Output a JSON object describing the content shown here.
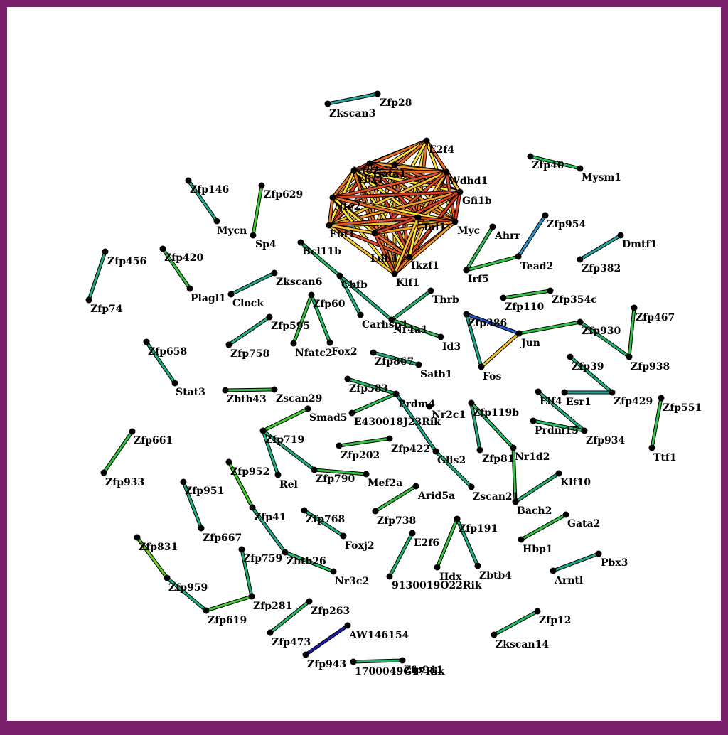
{
  "diagram": {
    "type": "gene-network",
    "colors": {
      "frame": "#7b1f6b",
      "background": "#ffffff",
      "node": "#000000"
    },
    "nodes": [
      {
        "id": "Zkscan3",
        "label": "Zkscan3"
      },
      {
        "id": "Zfp28",
        "label": "Zfp28"
      },
      {
        "id": "E2f4",
        "label": "E2f4"
      },
      {
        "id": "Gata1",
        "label": "Gata1"
      },
      {
        "id": "Nfe2",
        "label": "Nfe2"
      },
      {
        "id": "Ybx1",
        "label": "Ybx1"
      },
      {
        "id": "Wdhd1",
        "label": "Wdhd1"
      },
      {
        "id": "Gfi1b",
        "label": "Gfi1b"
      },
      {
        "id": "Nfe2b",
        "label": "Nfe2"
      },
      {
        "id": "Ebf1",
        "label": "Ebf1"
      },
      {
        "id": "Myc",
        "label": "Myc"
      },
      {
        "id": "Ikzf1",
        "label": "Ikzf1"
      },
      {
        "id": "Klf1",
        "label": "Klf1"
      },
      {
        "id": "Tal1",
        "label": "Tal1"
      },
      {
        "id": "Ldb1",
        "label": "Ldb1"
      },
      {
        "id": "Zfp40",
        "label": "Zfp40"
      },
      {
        "id": "Mysm1",
        "label": "Mysm1"
      },
      {
        "id": "Zfp146",
        "label": "Zfp146"
      },
      {
        "id": "Mycn",
        "label": "Mycn"
      },
      {
        "id": "Zfp629",
        "label": "Zfp629"
      },
      {
        "id": "Sp4",
        "label": "Sp4"
      },
      {
        "id": "Zfp954",
        "label": "Zfp954"
      },
      {
        "id": "Tead2",
        "label": "Tead2"
      },
      {
        "id": "Ahrr",
        "label": "Ahrr"
      },
      {
        "id": "Irf5",
        "label": "Irf5"
      },
      {
        "id": "Dmtf1",
        "label": "Dmtf1"
      },
      {
        "id": "Zfp382",
        "label": "Zfp382"
      },
      {
        "id": "Zfp456",
        "label": "Zfp456"
      },
      {
        "id": "Zfp74",
        "label": "Zfp74"
      },
      {
        "id": "Zfp420",
        "label": "Zfp420"
      },
      {
        "id": "Plagl1",
        "label": "Plagl1"
      },
      {
        "id": "Bcl11b",
        "label": "Bcl11b"
      },
      {
        "id": "Cbfb",
        "label": "Cbfb"
      },
      {
        "id": "Carhsp1",
        "label": "Carhsp1"
      },
      {
        "id": "Nr4a1",
        "label": "Nr4a1"
      },
      {
        "id": "Zkscan6",
        "label": "Zkscan6"
      },
      {
        "id": "Clock",
        "label": "Clock"
      },
      {
        "id": "Zfp110",
        "label": "Zfp110"
      },
      {
        "id": "Zfp354c",
        "label": "Zfp354c"
      },
      {
        "id": "Thrb",
        "label": "Thrb"
      },
      {
        "id": "Id3",
        "label": "Id3"
      },
      {
        "id": "Zfp60",
        "label": "Zfp60"
      },
      {
        "id": "Nfatc2",
        "label": "Nfatc2"
      },
      {
        "id": "Fox2",
        "label": "Fox2"
      },
      {
        "id": "Zfp595",
        "label": "Zfp595"
      },
      {
        "id": "Zfp758",
        "label": "Zfp758"
      },
      {
        "id": "Zfp386",
        "label": "Zfp386"
      },
      {
        "id": "Jun",
        "label": "Jun"
      },
      {
        "id": "Fos",
        "label": "Fos"
      },
      {
        "id": "Zfp930",
        "label": "Zfp930"
      },
      {
        "id": "Zfp467",
        "label": "Zfp467"
      },
      {
        "id": "Zfp938",
        "label": "Zfp938"
      },
      {
        "id": "Zfp658",
        "label": "Zfp658"
      },
      {
        "id": "Stat3",
        "label": "Stat3"
      },
      {
        "id": "Zfp867",
        "label": "Zfp867"
      },
      {
        "id": "Satb1",
        "label": "Satb1"
      },
      {
        "id": "Zfp39",
        "label": "Zfp39"
      },
      {
        "id": "Zfp429",
        "label": "Zfp429"
      },
      {
        "id": "Zbtb43",
        "label": "Zbtb43"
      },
      {
        "id": "Zscan29",
        "label": "Zscan29"
      },
      {
        "id": "Zfp583",
        "label": "Zfp583"
      },
      {
        "id": "Prdm4",
        "label": "Prdm4"
      },
      {
        "id": "E430018J23Rik",
        "label": "E430018J23Rik"
      },
      {
        "id": "Nr2c1",
        "label": "Nr2c1"
      },
      {
        "id": "Glis2",
        "label": "Glis2"
      },
      {
        "id": "Zscan21",
        "label": "Zscan21"
      },
      {
        "id": "Zfp119b",
        "label": "Zfp119b"
      },
      {
        "id": "Zfp81",
        "label": "Zfp81"
      },
      {
        "id": "Nr1d2",
        "label": "Nr1d2"
      },
      {
        "id": "Bach2",
        "label": "Bach2"
      },
      {
        "id": "Klf10",
        "label": "Klf10"
      },
      {
        "id": "Elf4",
        "label": "Elf4"
      },
      {
        "id": "Esr1",
        "label": "Esr1"
      },
      {
        "id": "Prdm15",
        "label": "Prdm15"
      },
      {
        "id": "Zfp934",
        "label": "Zfp934"
      },
      {
        "id": "Zfp551",
        "label": "Zfp551"
      },
      {
        "id": "Ttf1",
        "label": "Ttf1"
      },
      {
        "id": "Smad5",
        "label": "Smad5"
      },
      {
        "id": "Zfp719",
        "label": "Zfp719"
      },
      {
        "id": "Rel",
        "label": "Rel"
      },
      {
        "id": "Zfp790",
        "label": "Zfp790"
      },
      {
        "id": "Mef2a",
        "label": "Mef2a"
      },
      {
        "id": "Zfp661",
        "label": "Zfp661"
      },
      {
        "id": "Zfp933",
        "label": "Zfp933"
      },
      {
        "id": "Zfp202",
        "label": "Zfp202"
      },
      {
        "id": "Zfp422",
        "label": "Zfp422"
      },
      {
        "id": "Zfp952",
        "label": "Zfp952"
      },
      {
        "id": "Zfp41",
        "label": "Zfp41"
      },
      {
        "id": "Zbtb26",
        "label": "Zbtb26"
      },
      {
        "id": "Nr3c2",
        "label": "Nr3c2"
      },
      {
        "id": "Zfp951",
        "label": "Zfp951"
      },
      {
        "id": "Zfp667",
        "label": "Zfp667"
      },
      {
        "id": "Arid5a",
        "label": "Arid5a"
      },
      {
        "id": "Zfp738",
        "label": "Zfp738"
      },
      {
        "id": "Zfp768",
        "label": "Zfp768"
      },
      {
        "id": "Foxj2",
        "label": "Foxj2"
      },
      {
        "id": "Gata2",
        "label": "Gata2"
      },
      {
        "id": "Hbp1",
        "label": "Hbp1"
      },
      {
        "id": "Zfp191",
        "label": "Zfp191"
      },
      {
        "id": "Hdx",
        "label": "Hdx"
      },
      {
        "id": "Zbtb4",
        "label": "Zbtb4"
      },
      {
        "id": "E2f6",
        "label": "E2f6"
      },
      {
        "id": "9130019O22Rik",
        "label": "9130019O22Rik"
      },
      {
        "id": "Pbx3",
        "label": "Pbx3"
      },
      {
        "id": "Arntl",
        "label": "Arntl"
      },
      {
        "id": "Zfp831",
        "label": "Zfp831"
      },
      {
        "id": "Zfp959",
        "label": "Zfp959"
      },
      {
        "id": "Zfp619",
        "label": "Zfp619"
      },
      {
        "id": "Zfp281",
        "label": "Zfp281"
      },
      {
        "id": "Zfp759",
        "label": "Zfp759"
      },
      {
        "id": "Zfp263",
        "label": "Zfp263"
      },
      {
        "id": "Zfp473",
        "label": "Zfp473"
      },
      {
        "id": "AW146154",
        "label": "AW146154"
      },
      {
        "id": "Zfp943",
        "label": "Zfp943"
      },
      {
        "id": "Zfp12",
        "label": "Zfp12"
      },
      {
        "id": "Zkscan14",
        "label": "Zkscan14"
      },
      {
        "id": "1700049G17Rik",
        "label": "1700049G17Rik"
      },
      {
        "id": "Zfp941",
        "label": "Zfp941"
      }
    ],
    "edges": [
      {
        "source": "Zkscan3",
        "target": "Zfp28",
        "color": "#2aa198"
      },
      {
        "source": "Zfp40",
        "target": "Mysm1",
        "color": "#22c055"
      },
      {
        "source": "Zfp146",
        "target": "Mycn",
        "color": "#1fa88a"
      },
      {
        "source": "Zfp629",
        "target": "Sp4",
        "color": "#44cc33"
      },
      {
        "source": "Zfp954",
        "target": "Tead2",
        "color": "#2b8fbf"
      },
      {
        "source": "Ahrr",
        "target": "Irf5",
        "color": "#33bb55"
      },
      {
        "source": "Tead2",
        "target": "Irf5",
        "color": "#33c044"
      },
      {
        "source": "Dmtf1",
        "target": "Zfp382",
        "color": "#20a5a0"
      },
      {
        "source": "Zfp456",
        "target": "Zfp74",
        "color": "#22aa77"
      },
      {
        "source": "Zfp420",
        "target": "Plagl1",
        "color": "#33c044"
      },
      {
        "source": "Bcl11b",
        "target": "Cbfb",
        "color": "#22bb66"
      },
      {
        "source": "Cbfb",
        "target": "Carhsp1",
        "color": "#1fb07a"
      },
      {
        "source": "Cbfb",
        "target": "Nr4a1",
        "color": "#22aa77"
      },
      {
        "source": "Zkscan6",
        "target": "Clock",
        "color": "#1fa88a"
      },
      {
        "source": "Zfp110",
        "target": "Zfp354c",
        "color": "#33c044"
      },
      {
        "source": "Thrb",
        "target": "Nr4a1",
        "color": "#22b06a"
      },
      {
        "source": "Nr4a1",
        "target": "Id3",
        "color": "#33bb55"
      },
      {
        "source": "Zfp60",
        "target": "Nfatc2",
        "color": "#33c044"
      },
      {
        "source": "Zfp60",
        "target": "Fox2",
        "color": "#22bb66"
      },
      {
        "source": "Zfp595",
        "target": "Zfp758",
        "color": "#1fb07a"
      },
      {
        "source": "Zfp386",
        "target": "Jun",
        "color": "#2255cc"
      },
      {
        "source": "Zfp386",
        "target": "Fos",
        "color": "#1fa88a"
      },
      {
        "source": "Jun",
        "target": "Fos",
        "color": "#f2c230"
      },
      {
        "source": "Jun",
        "target": "Zfp930",
        "color": "#33c044"
      },
      {
        "source": "Zfp930",
        "target": "Zfp938",
        "color": "#22b06a"
      },
      {
        "source": "Zfp467",
        "target": "Zfp938",
        "color": "#33c044"
      },
      {
        "source": "Zfp658",
        "target": "Stat3",
        "color": "#1fb07a"
      },
      {
        "source": "Zfp867",
        "target": "Satb1",
        "color": "#22aa77"
      },
      {
        "source": "Zfp39",
        "target": "Zfp429",
        "color": "#1fb07a"
      },
      {
        "source": "Esr1",
        "target": "Zfp429",
        "color": "#2aa198"
      },
      {
        "source": "Zbtb43",
        "target": "Zscan29",
        "color": "#33c044"
      },
      {
        "source": "Zfp583",
        "target": "Prdm4",
        "color": "#22bb66"
      },
      {
        "source": "E430018J23Rik",
        "target": "Prdm4",
        "color": "#33bb55"
      },
      {
        "source": "Prdm4",
        "target": "Glis2",
        "color": "#1fa88a"
      },
      {
        "source": "Glis2",
        "target": "Zscan21",
        "color": "#1fb07a"
      },
      {
        "source": "Zfp119b",
        "target": "Zfp81",
        "color": "#22aa77"
      },
      {
        "source": "Zfp119b",
        "target": "Nr1d2",
        "color": "#22bb66"
      },
      {
        "source": "Nr1d2",
        "target": "Bach2",
        "color": "#33c044"
      },
      {
        "source": "Bach2",
        "target": "Klf10",
        "color": "#22b06a"
      },
      {
        "source": "Elf4",
        "target": "Zfp934",
        "color": "#1fb07a"
      },
      {
        "source": "Prdm15",
        "target": "Zfp934",
        "color": "#22bb66"
      },
      {
        "source": "Zfp551",
        "target": "Ttf1",
        "color": "#33c044"
      },
      {
        "source": "Smad5",
        "target": "Zfp719",
        "color": "#44cc33"
      },
      {
        "source": "Zfp719",
        "target": "Rel",
        "color": "#1fb07a"
      },
      {
        "source": "Zfp719",
        "target": "Zfp790",
        "color": "#22aa77"
      },
      {
        "source": "Zfp790",
        "target": "Mef2a",
        "color": "#33c044"
      },
      {
        "source": "Zfp661",
        "target": "Zfp933",
        "color": "#33c044"
      },
      {
        "source": "Zfp202",
        "target": "Zfp422",
        "color": "#33c044"
      },
      {
        "source": "Zfp952",
        "target": "Zfp41",
        "color": "#44cc33"
      },
      {
        "source": "Zfp41",
        "target": "Zbtb26",
        "color": "#1fa88a"
      },
      {
        "source": "Zbtb26",
        "target": "Nr3c2",
        "color": "#22bb66"
      },
      {
        "source": "Zfp951",
        "target": "Zfp667",
        "color": "#1fb07a"
      },
      {
        "source": "Arid5a",
        "target": "Zfp738",
        "color": "#33c044"
      },
      {
        "source": "Zfp768",
        "target": "Foxj2",
        "color": "#1fb07a"
      },
      {
        "source": "Gata2",
        "target": "Hbp1",
        "color": "#33c044"
      },
      {
        "source": "Zfp191",
        "target": "Hdx",
        "color": "#33c044"
      },
      {
        "source": "Zfp191",
        "target": "Zbtb4",
        "color": "#1fb07a"
      },
      {
        "source": "E2f6",
        "target": "9130019O22Rik",
        "color": "#22b06a"
      },
      {
        "source": "Pbx3",
        "target": "Arntl",
        "color": "#1fa88a"
      },
      {
        "source": "Zfp831",
        "target": "Zfp959",
        "color": "#66cc22"
      },
      {
        "source": "Zfp959",
        "target": "Zfp619",
        "color": "#1fb07a"
      },
      {
        "source": "Zfp619",
        "target": "Zfp281",
        "color": "#44cc33"
      },
      {
        "source": "Zfp281",
        "target": "Zfp759",
        "color": "#22b06a"
      },
      {
        "source": "Zfp263",
        "target": "Zfp473",
        "color": "#22bb66"
      },
      {
        "source": "AW146154",
        "target": "Zfp943",
        "color": "#1a1aa0"
      },
      {
        "source": "Zfp12",
        "target": "Zkscan14",
        "color": "#22bb66"
      },
      {
        "source": "1700049G17Rik",
        "target": "Zfp941",
        "color": "#22b06a"
      }
    ],
    "cluster": {
      "members": [
        "E2f4",
        "Gata1",
        "Nfe2",
        "Ybx1",
        "Wdhd1",
        "Gfi1b",
        "Nfe2b",
        "Ebf1",
        "Myc",
        "Ikzf1",
        "Klf1",
        "Tal1",
        "Ldb1"
      ],
      "edge_colors": [
        "#ffe23a",
        "#f7c233",
        "#f09a2b",
        "#e8702a",
        "#e0502a",
        "#d63d22"
      ]
    }
  }
}
